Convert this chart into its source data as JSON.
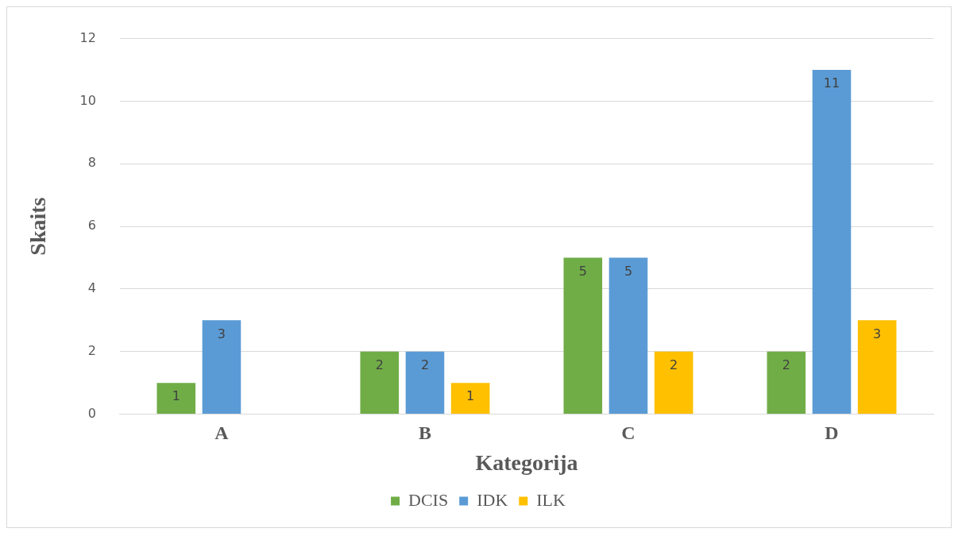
{
  "chart_data": {
    "type": "bar",
    "xlabel": "Kategorija",
    "ylabel": "Skaits",
    "categories": [
      "A",
      "B",
      "C",
      "D"
    ],
    "series": [
      {
        "name": "DCIS",
        "color": "#70ad47",
        "values": [
          1,
          2,
          5,
          2
        ]
      },
      {
        "name": "IDK",
        "color": "#5b9bd5",
        "values": [
          3,
          2,
          5,
          11
        ]
      },
      {
        "name": "ILK",
        "color": "#ffc000",
        "values": [
          null,
          1,
          2,
          3
        ]
      }
    ],
    "ylim": [
      0,
      12
    ],
    "yticks": [
      0,
      2,
      4,
      6,
      8,
      10,
      12
    ],
    "grid": "y",
    "legend": "bottom",
    "data_labels": true
  }
}
